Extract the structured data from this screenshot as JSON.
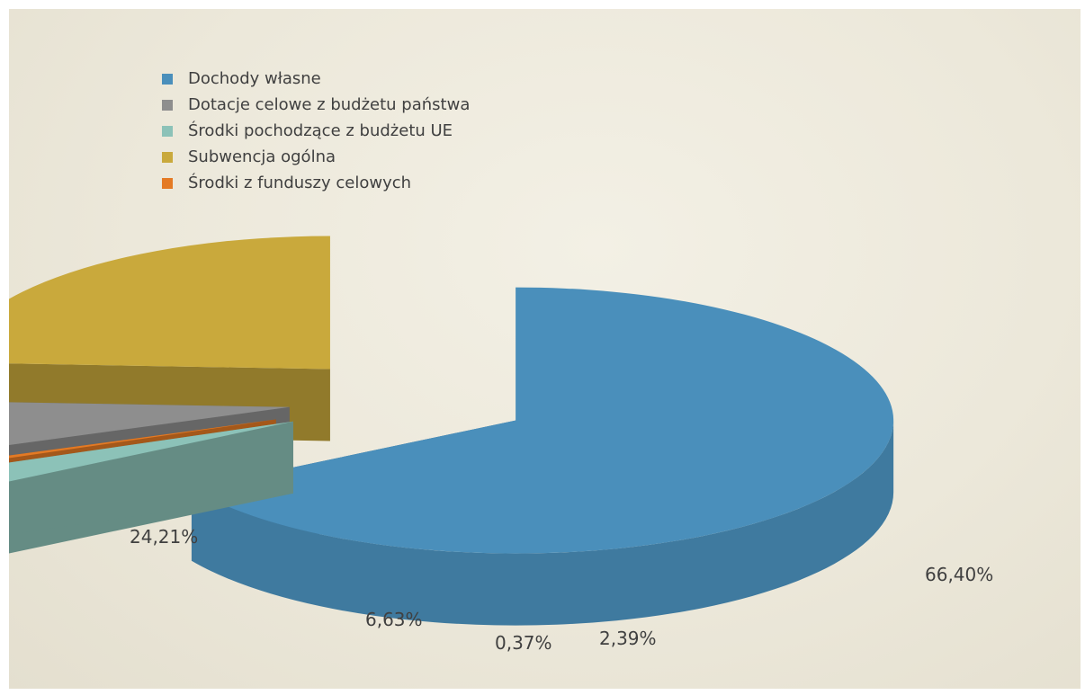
{
  "chart_data": {
    "type": "pie",
    "style": "3d-exploded",
    "series": [
      {
        "name": "Dochody własne",
        "value": 66.4,
        "label": "66,40%",
        "color": "#4a8fbb"
      },
      {
        "name": "Środki pochodzące z budżetu UE",
        "value": 2.39,
        "label": "2,39%",
        "color": "#8cc2b8"
      },
      {
        "name": "Środki z funduszy celowych",
        "value": 0.37,
        "label": "0,37%",
        "color": "#e47a24"
      },
      {
        "name": "Dotacje celowe z budżetu państwa",
        "value": 6.63,
        "label": "6,63%",
        "color": "#8e8e8e"
      },
      {
        "name": "Subwencja ogólna",
        "value": 24.21,
        "label": "24,21%",
        "color": "#c9a93c"
      }
    ],
    "legend": {
      "position": "top-left",
      "items": [
        {
          "label": "Dochody własne",
          "color": "#4a8fbb"
        },
        {
          "label": "Dotacje celowe z budżetu państwa",
          "color": "#8e8e8e"
        },
        {
          "label": "Środki pochodzące z budżetu UE",
          "color": "#8cc2b8"
        },
        {
          "label": "Subwencja ogólna",
          "color": "#c9a93c"
        },
        {
          "label": "Środki z funduszy celowych",
          "color": "#e47a24"
        }
      ]
    }
  }
}
